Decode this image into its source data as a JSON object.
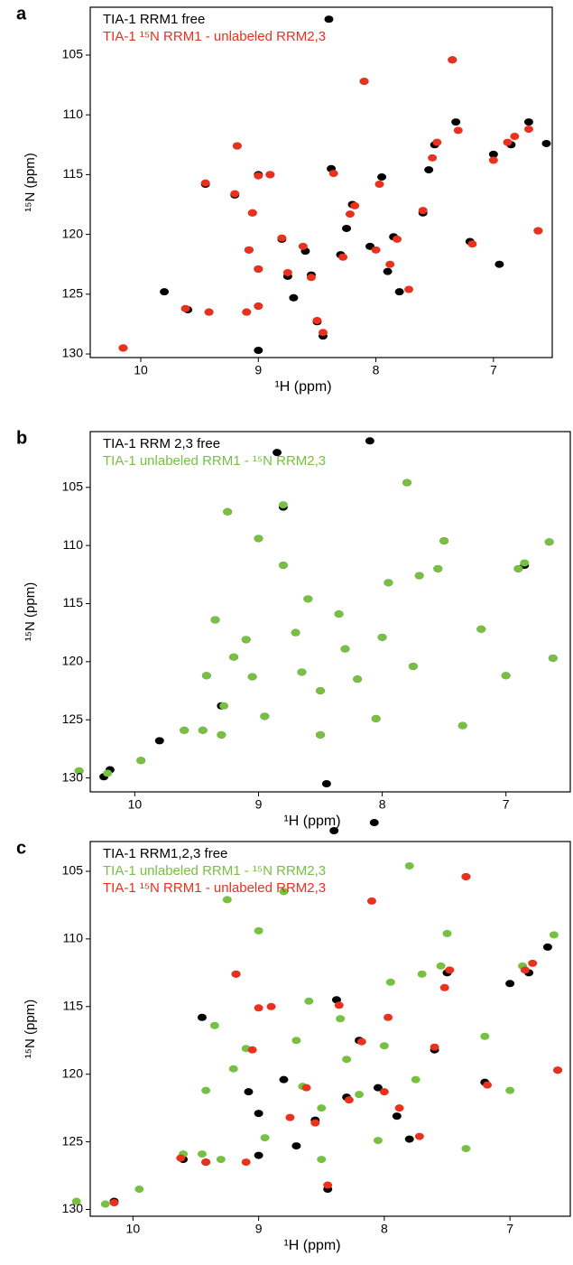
{
  "chart_data": [
    {
      "type": "scatter",
      "label": "a",
      "xlabel": "¹H (ppm)",
      "ylabel": "¹⁵N (ppm)",
      "xlim": [
        10.43,
        6.5
      ],
      "ylim": [
        101,
        130.3
      ],
      "xticks": [
        10,
        9,
        8,
        7
      ],
      "yticks": [
        105,
        110,
        115,
        120,
        125,
        130
      ],
      "series": [
        {
          "name": "TIA-1 RRM1 free",
          "color": "#000000",
          "x": [
            10.15,
            9.8,
            9.6,
            9.42,
            9.45,
            9.18,
            9.2,
            9.1,
            9.08,
            9.05,
            9.0,
            9.0,
            9.0,
            9.0,
            8.9,
            8.8,
            8.75,
            8.7,
            8.6,
            8.55,
            8.5,
            8.45,
            8.4,
            8.38,
            8.3,
            8.25,
            8.2,
            8.1,
            8.05,
            7.95,
            7.9,
            7.85,
            7.8,
            7.6,
            7.55,
            7.5,
            7.35,
            7.32,
            7.2,
            7.0,
            6.95,
            6.85,
            6.7,
            6.62,
            6.55
          ],
          "y": [
            129.5,
            124.8,
            126.3,
            126.5,
            115.8,
            112.6,
            116.7,
            126.5,
            121.3,
            118.2,
            115.0,
            122.9,
            126.0,
            129.7,
            115.0,
            120.4,
            123.5,
            125.3,
            121.4,
            123.4,
            127.3,
            128.5,
            102.0,
            114.5,
            121.7,
            119.5,
            117.5,
            107.2,
            121.0,
            115.2,
            123.1,
            120.2,
            124.8,
            118.2,
            114.6,
            112.5,
            105.4,
            110.6,
            120.6,
            113.3,
            122.5,
            112.5,
            110.6,
            119.7,
            112.4
          ]
        },
        {
          "name": "TIA-1 ¹⁵N RRM1 - unlabeled RRM2,3",
          "color": "#e8321e",
          "x": [
            10.15,
            9.62,
            9.42,
            9.45,
            9.18,
            9.2,
            9.1,
            9.08,
            9.05,
            9.0,
            9.0,
            9.0,
            8.9,
            8.8,
            8.75,
            8.62,
            8.55,
            8.5,
            8.45,
            8.36,
            8.28,
            8.22,
            8.18,
            8.1,
            8.0,
            7.97,
            7.88,
            7.82,
            7.72,
            7.6,
            7.52,
            7.48,
            7.35,
            7.3,
            7.18,
            7.0,
            6.88,
            6.82,
            6.7,
            6.62
          ],
          "y": [
            129.5,
            126.2,
            126.5,
            115.7,
            112.6,
            116.6,
            126.5,
            121.3,
            118.2,
            115.1,
            122.9,
            126.0,
            115.0,
            120.3,
            123.2,
            121.0,
            123.6,
            127.2,
            128.2,
            114.9,
            121.9,
            118.3,
            117.6,
            107.2,
            121.3,
            115.8,
            122.5,
            120.4,
            124.6,
            118.0,
            113.6,
            112.3,
            105.4,
            111.3,
            120.8,
            113.8,
            112.3,
            111.8,
            111.2,
            119.7
          ]
        }
      ]
    },
    {
      "type": "scatter",
      "label": "b",
      "xlabel": "¹H (ppm)",
      "ylabel": "¹⁵N (ppm)",
      "xlim": [
        10.36,
        6.48
      ],
      "ylim": [
        100.2,
        131.2
      ],
      "xticks": [
        10,
        9,
        8,
        7
      ],
      "yticks": [
        105,
        110,
        115,
        120,
        125,
        130
      ],
      "series": [
        {
          "name": "TIA-1 RRM 2,3 free",
          "color": "#000000",
          "x": [
            10.45,
            10.25,
            10.2,
            9.95,
            9.8,
            9.6,
            9.45,
            9.42,
            9.35,
            9.3,
            9.3,
            9.25,
            9.2,
            9.1,
            9.05,
            9.0,
            8.95,
            8.85,
            8.8,
            8.8,
            8.7,
            8.65,
            8.6,
            8.5,
            8.5,
            8.45,
            8.35,
            8.3,
            8.2,
            8.1,
            8.05,
            8.0,
            7.95,
            7.8,
            7.75,
            7.7,
            7.55,
            7.5,
            7.35,
            7.2,
            7.0,
            6.9,
            6.85,
            6.65,
            6.62
          ],
          "y": [
            129.4,
            129.9,
            129.3,
            128.5,
            126.8,
            125.9,
            125.9,
            121.2,
            116.4,
            126.3,
            123.8,
            107.1,
            119.6,
            118.1,
            121.3,
            109.4,
            124.7,
            102.0,
            106.7,
            111.7,
            117.5,
            120.9,
            114.6,
            122.5,
            126.3,
            130.5,
            115.9,
            118.9,
            121.5,
            101.0,
            124.9,
            117.9,
            113.2,
            104.6,
            120.4,
            112.6,
            112.0,
            109.6,
            125.5,
            117.2,
            121.2,
            112.0,
            111.7,
            109.7,
            119.7
          ]
        },
        {
          "name": "TIA-1 unlabeled RRM1 - ¹⁵N RRM2,3",
          "color": "#77c043",
          "x": [
            10.45,
            10.22,
            9.95,
            9.6,
            9.45,
            9.42,
            9.35,
            9.3,
            9.28,
            9.25,
            9.2,
            9.1,
            9.05,
            9.0,
            8.95,
            8.8,
            8.8,
            8.7,
            8.65,
            8.6,
            8.5,
            8.5,
            8.35,
            8.3,
            8.2,
            8.05,
            8.0,
            7.95,
            7.8,
            7.75,
            7.7,
            7.55,
            7.5,
            7.35,
            7.2,
            7.0,
            6.9,
            6.85,
            6.65,
            6.62
          ],
          "y": [
            129.4,
            129.6,
            128.5,
            125.9,
            125.9,
            121.2,
            116.4,
            126.3,
            123.8,
            107.1,
            119.6,
            118.1,
            121.3,
            109.4,
            124.7,
            106.5,
            111.7,
            117.5,
            120.9,
            114.6,
            122.5,
            126.3,
            115.9,
            118.9,
            121.5,
            124.9,
            117.9,
            113.2,
            104.6,
            120.4,
            112.6,
            112.0,
            109.6,
            125.5,
            117.2,
            121.2,
            112.0,
            111.5,
            109.7,
            119.7
          ]
        }
      ]
    },
    {
      "type": "scatter",
      "label": "c",
      "xlabel": "¹H (ppm)",
      "ylabel": "¹⁵N (ppm)",
      "xlim": [
        10.34,
        6.52
      ],
      "ylim": [
        102.8,
        130.5
      ],
      "xticks": [
        10,
        9,
        8,
        7
      ],
      "yticks": [
        105,
        110,
        115,
        120,
        125,
        130
      ],
      "series": [
        {
          "name": "TIA-1 RRM1,2,3 free",
          "color": "#000000",
          "x": [
            10.15,
            9.6,
            9.42,
            9.45,
            9.18,
            9.08,
            9.0,
            9.0,
            8.8,
            8.7,
            8.55,
            8.45,
            8.4,
            8.38,
            8.3,
            8.2,
            8.08,
            8.05,
            7.9,
            7.8,
            7.6,
            7.5,
            7.35,
            7.2,
            7.0,
            6.85,
            6.7,
            6.62
          ],
          "y": [
            129.4,
            126.3,
            126.5,
            115.8,
            112.6,
            121.3,
            122.9,
            126.0,
            120.4,
            125.3,
            123.4,
            128.5,
            102.0,
            114.5,
            121.7,
            117.5,
            101.4,
            121.0,
            123.1,
            124.8,
            118.2,
            112.5,
            105.4,
            120.6,
            113.3,
            112.5,
            110.6,
            119.7
          ]
        },
        {
          "name": "TIA-1 unlabeled RRM1 - ¹⁵N RRM2,3",
          "color": "#77c043",
          "x": [
            10.45,
            10.22,
            9.95,
            9.6,
            9.45,
            9.42,
            9.35,
            9.3,
            9.25,
            9.2,
            9.1,
            9.0,
            8.95,
            8.8,
            8.7,
            8.65,
            8.6,
            8.5,
            8.5,
            8.35,
            8.3,
            8.2,
            8.05,
            8.0,
            7.95,
            7.8,
            7.75,
            7.7,
            7.55,
            7.5,
            7.35,
            7.2,
            7.0,
            6.9,
            6.65
          ],
          "y": [
            129.4,
            129.6,
            128.5,
            125.9,
            125.9,
            121.2,
            116.4,
            126.3,
            107.1,
            119.6,
            118.1,
            109.4,
            124.7,
            106.5,
            117.5,
            120.9,
            114.6,
            122.5,
            126.3,
            115.9,
            118.9,
            121.5,
            124.9,
            117.9,
            113.2,
            104.6,
            120.4,
            112.6,
            112.0,
            109.6,
            125.5,
            117.2,
            121.2,
            112.0,
            109.7
          ]
        },
        {
          "name": "TIA-1 ¹⁵N RRM1 - unlabeled RRM2,3",
          "color": "#e8321e",
          "x": [
            10.15,
            9.62,
            9.42,
            9.18,
            9.1,
            9.05,
            9.0,
            8.9,
            8.75,
            8.62,
            8.55,
            8.45,
            8.36,
            8.28,
            8.18,
            8.1,
            8.0,
            7.97,
            7.88,
            7.72,
            7.6,
            7.52,
            7.48,
            7.35,
            7.18,
            6.88,
            6.82,
            6.62
          ],
          "y": [
            129.5,
            126.2,
            126.5,
            112.6,
            126.5,
            118.2,
            115.1,
            115.0,
            123.2,
            121.0,
            123.6,
            128.2,
            114.9,
            121.9,
            117.6,
            107.2,
            121.3,
            115.8,
            122.5,
            124.6,
            118.0,
            113.6,
            112.3,
            105.4,
            120.8,
            112.3,
            111.8,
            119.7
          ]
        }
      ]
    }
  ]
}
